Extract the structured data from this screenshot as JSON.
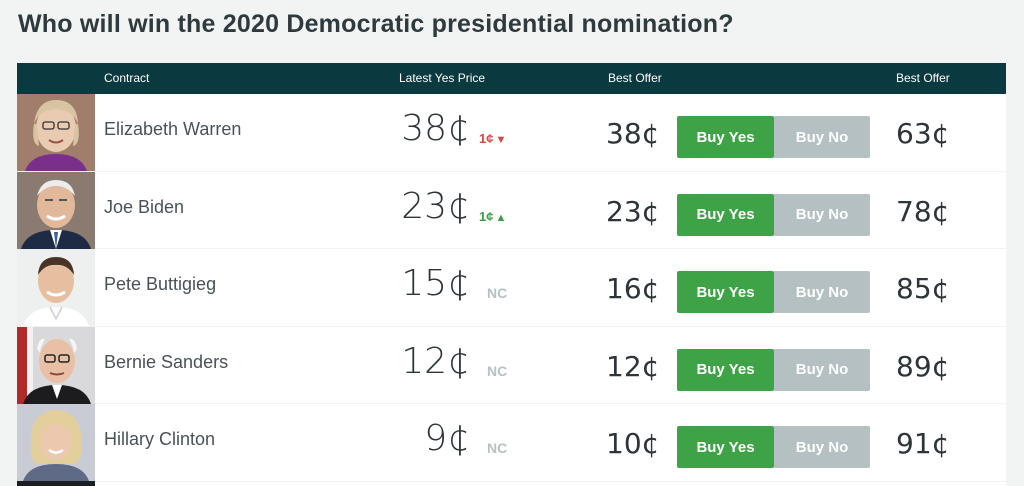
{
  "title": "Who will win the 2020 Democratic presidential nomination?",
  "columns": {
    "contract": "Contract",
    "latest_yes_price": "Latest Yes Price",
    "best_offer_yes": "Best Offer",
    "best_offer_no": "Best Offer"
  },
  "buttons": {
    "buy_yes": "Buy Yes",
    "buy_no": "Buy No"
  },
  "colors": {
    "header_bg": "#0b3940",
    "buy_yes": "#3ea346",
    "buy_no": "#b4c0c1",
    "change_down": "#d64541",
    "change_up": "#3a9e45",
    "no_change": "#b7c0c2"
  },
  "rows": [
    {
      "name": "Elizabeth Warren",
      "price": "38¢",
      "change": "1¢",
      "change_dir": "down",
      "best_offer_yes": "38¢",
      "best_offer_no": "63¢"
    },
    {
      "name": "Joe Biden",
      "price": "23¢",
      "change": "1¢",
      "change_dir": "up",
      "best_offer_yes": "23¢",
      "best_offer_no": "78¢"
    },
    {
      "name": "Pete Buttigieg",
      "price": "15¢",
      "change": "NC",
      "change_dir": "none",
      "best_offer_yes": "16¢",
      "best_offer_no": "85¢"
    },
    {
      "name": "Bernie Sanders",
      "price": "12¢",
      "change": "NC",
      "change_dir": "none",
      "best_offer_yes": "12¢",
      "best_offer_no": "89¢"
    },
    {
      "name": "Hillary Clinton",
      "price": "9¢",
      "change": "NC",
      "change_dir": "none",
      "best_offer_yes": "10¢",
      "best_offer_no": "91¢"
    }
  ]
}
